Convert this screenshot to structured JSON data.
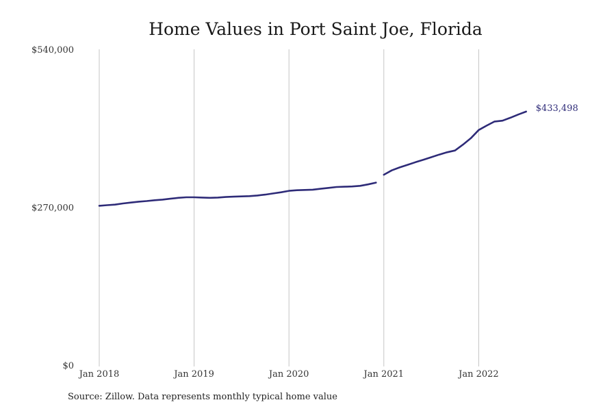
{
  "chart_data": {
    "type": "line",
    "title": "Home Values in Port Saint Joe, Florida",
    "xlabel": "",
    "ylabel": "",
    "source": "Source: Zillow. Data represents monthly typical home value",
    "x_ticks": [
      "Jan 2018",
      "Jan 2019",
      "Jan 2020",
      "Jan 2021",
      "Jan 2022"
    ],
    "y_ticks": [
      "$0",
      "$270,000",
      "$540,000"
    ],
    "y_tick_values": [
      0,
      270000,
      540000
    ],
    "ylim": [
      0,
      540000
    ],
    "xlim": [
      "2018-01",
      "2022-12"
    ],
    "grid": "vertical",
    "line_color": "#2e2b78",
    "end_label": "$433,498",
    "series": [
      {
        "segments": [
          {
            "x": [
              "2018-01",
              "2018-02",
              "2018-03",
              "2018-04",
              "2018-05",
              "2018-06",
              "2018-07",
              "2018-08",
              "2018-09",
              "2018-10",
              "2018-11",
              "2018-12",
              "2019-01",
              "2019-02",
              "2019-03",
              "2019-04",
              "2019-05",
              "2019-06",
              "2019-07",
              "2019-08",
              "2019-09",
              "2019-10",
              "2019-11",
              "2019-12",
              "2020-01",
              "2020-02",
              "2020-03",
              "2020-04",
              "2020-05",
              "2020-06",
              "2020-07",
              "2020-08",
              "2020-09",
              "2020-10",
              "2020-11",
              "2020-12"
            ],
            "y": [
              272500,
              273500,
              274500,
              276500,
              278000,
              279500,
              280500,
              282000,
              283000,
              284500,
              286000,
              287000,
              287000,
              286500,
              286000,
              286500,
              287500,
              288000,
              288500,
              289000,
              290000,
              291500,
              293500,
              295500,
              298000,
              299000,
              299500,
              300000,
              301500,
              303000,
              304500,
              305000,
              305500,
              306500,
              309000,
              312000
            ]
          },
          {
            "x": [
              "2021-01",
              "2021-02",
              "2021-03",
              "2021-04",
              "2021-05",
              "2021-06",
              "2021-07",
              "2021-08",
              "2021-09",
              "2021-10",
              "2021-11",
              "2021-12",
              "2022-01",
              "2022-02",
              "2022-03",
              "2022-04",
              "2022-05",
              "2022-06",
              "2022-07",
              "2022-08"
            ],
            "y": [
              325500,
              333000,
              338000,
              342500,
              347000,
              351000,
              355500,
              360000,
              364000,
              367000,
              377000,
              388000,
              402000,
              409500,
              416500,
              418000,
              423000,
              428500,
              433498,
              null
            ]
          }
        ]
      }
    ]
  }
}
